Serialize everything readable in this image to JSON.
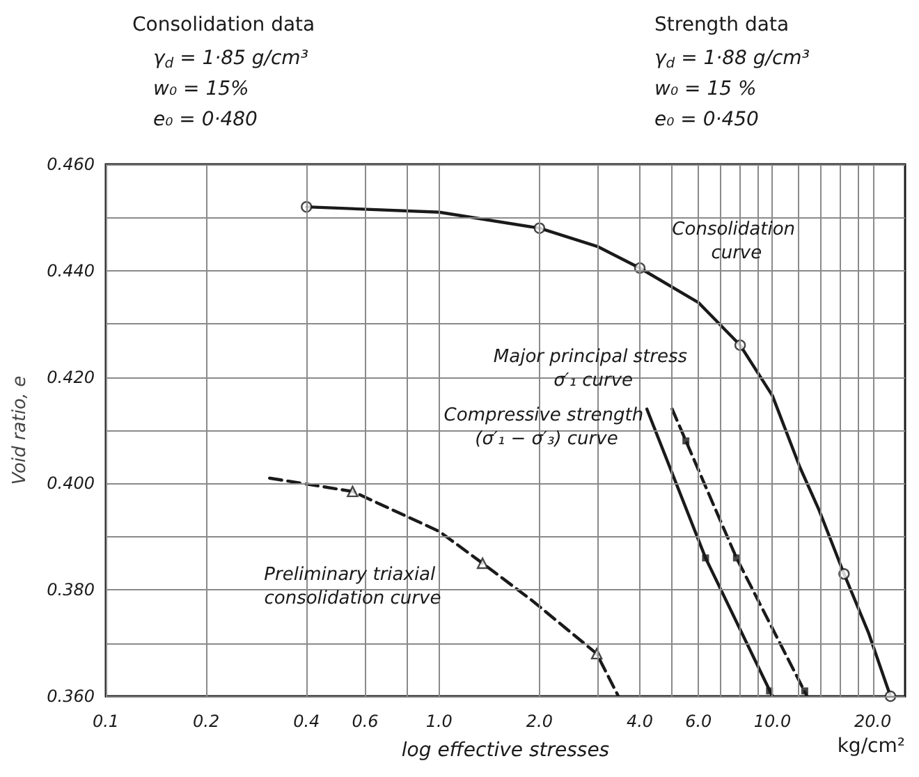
{
  "chart_data": {
    "type": "line",
    "xlabel": "log effective stresses",
    "ylabel": "Void ratio, e",
    "annotations": [
      "Consolidation data",
      "γ$_{d}$ = 1·85 g/cm³",
      "w₀ = 15%",
      "e₀ = 0·480",
      "Strength data",
      "γ$_{d}$ = 1·88 g/cm³",
      "w₀ = 15 %",
      "e₀ = 0·450",
      "kg/cm²"
    ],
    "log": "x",
    "grid": true,
    "legend": false,
    "xlim": [
      0.1,
      25
    ],
    "ylim": [
      0.36,
      0.46
    ],
    "xticks": [
      0.1,
      0.2,
      0.4,
      0.6,
      {
        "value": 0.8,
        "label": null
      },
      {
        "value": 1,
        "label": "1.0"
      },
      {
        "value": 2,
        "label": "2.0"
      },
      {
        "value": 3,
        "label": null
      },
      {
        "value": 4,
        "label": "4.0"
      },
      {
        "value": 5,
        "label": null
      },
      {
        "value": 6,
        "label": "6.0"
      },
      {
        "value": 7,
        "label": null
      },
      {
        "value": 8,
        "label": null
      },
      {
        "value": 9,
        "label": null
      },
      {
        "value": 10,
        "label": "10.0"
      },
      {
        "value": 12,
        "label": null
      },
      {
        "value": 14,
        "label": null
      },
      {
        "value": 16,
        "label": null
      },
      {
        "value": 18,
        "label": null
      },
      {
        "value": 20,
        "label": "20.0"
      }
    ],
    "yticks": [
      {
        "value": 0.36,
        "label": "0.360"
      },
      {
        "value": 0.37,
        "label": null
      },
      {
        "value": 0.38,
        "label": "0.380"
      },
      {
        "value": 0.39,
        "label": null
      },
      {
        "value": 0.4,
        "label": "0.400"
      },
      {
        "value": 0.41,
        "label": null
      },
      {
        "value": 0.42,
        "label": "0.420"
      },
      {
        "value": 0.43,
        "label": null
      },
      {
        "value": 0.44,
        "label": "0.440"
      },
      {
        "value": 0.45,
        "label": null
      },
      {
        "value": 0.46,
        "label": "0.460"
      }
    ],
    "series": [
      {
        "name": "Consolidation curve",
        "color": "#1a1a1a",
        "line_style": "solid",
        "marker": "none",
        "x": [
          0.4,
          1.0,
          2.0,
          3.0,
          4.0,
          6.0,
          8.0,
          10.0,
          12.1,
          13.8,
          16.4,
          19.4,
          22.6
        ],
        "values": [
          0.452,
          0.451,
          0.448,
          0.4445,
          0.4405,
          0.434,
          0.426,
          0.4165,
          0.403,
          0.395,
          0.383,
          0.372,
          0.36
        ]
      },
      {
        "name": "Major principal stress σ′₁ curve",
        "color": "#1a1a1a",
        "line_style": "dashed",
        "marker": "none",
        "x": [
          5.0,
          5.5,
          7.8,
          12.7
        ],
        "values": [
          0.414,
          0.408,
          0.386,
          0.36
        ]
      },
      {
        "name": "Compressive strength (σ′₁ − σ′₃) curve",
        "color": "#1a1a1a",
        "line_style": "solid",
        "marker": "none",
        "x": [
          4.2,
          6.3,
          10.0
        ],
        "values": [
          0.414,
          0.386,
          0.36
        ]
      },
      {
        "name": "Preliminary triaxial consolidation curve",
        "color": "#1a1a1a",
        "line_style": "dashed",
        "marker": "none",
        "x": [
          0.31,
          0.55,
          1.0,
          1.35,
          1.9,
          2.97,
          3.45
        ],
        "values": [
          0.401,
          0.3985,
          0.391,
          0.385,
          0.378,
          0.368,
          0.36
        ]
      },
      {
        "type": "scatter",
        "color": "#1a1a1a",
        "marker": "circle",
        "x": [
          0.4,
          2.0,
          4.0,
          8.0,
          16.4,
          22.6
        ],
        "values": [
          0.452,
          0.448,
          0.4405,
          0.426,
          0.383,
          0.36
        ]
      },
      {
        "type": "scatter",
        "color": "#1a1a1a",
        "marker": "triangle",
        "x": [
          0.55,
          1.35,
          2.97
        ],
        "values": [
          0.3985,
          0.385,
          0.368
        ]
      },
      {
        "type": "scatter",
        "color": "#1a1a1a",
        "marker": "square",
        "x": [
          5.5,
          7.8,
          12.5,
          6.3,
          9.8
        ],
        "values": [
          0.408,
          0.386,
          0.361,
          0.386,
          0.361
        ]
      }
    ]
  }
}
